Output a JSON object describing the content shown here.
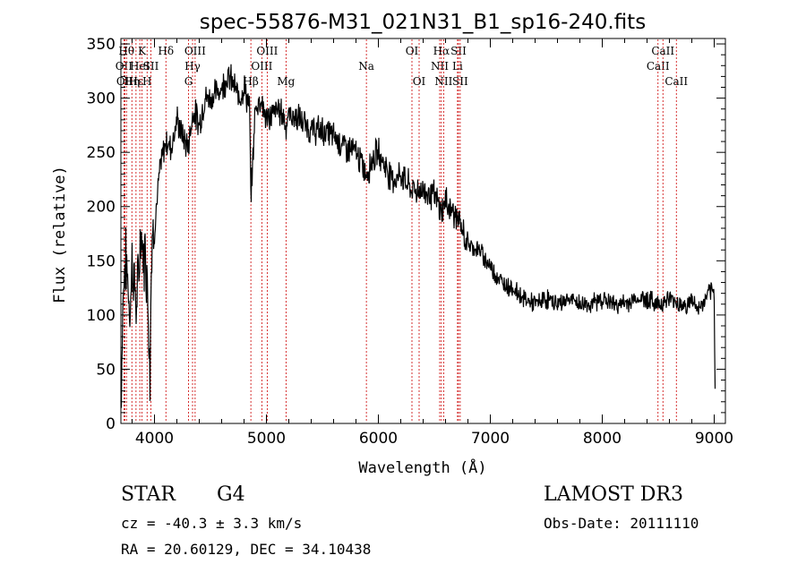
{
  "chart_data": {
    "type": "line",
    "title": "spec-55876-M31_021N31_B1_sp16-240.fits",
    "xlabel": "Wavelength (Å)",
    "ylabel": "Flux (relative)",
    "xlim": [
      3700,
      9100
    ],
    "ylim": [
      0,
      355
    ],
    "xticks": [
      4000,
      5000,
      6000,
      7000,
      8000,
      9000
    ],
    "yticks": [
      0,
      50,
      100,
      150,
      200,
      250,
      300,
      350
    ],
    "series": [
      {
        "name": "spectrum",
        "x": [
          3700,
          3720,
          3740,
          3760,
          3780,
          3800,
          3820,
          3840,
          3860,
          3880,
          3900,
          3920,
          3940,
          3960,
          3968,
          3980,
          4000,
          4050,
          4100,
          4150,
          4200,
          4250,
          4300,
          4350,
          4400,
          4450,
          4500,
          4550,
          4600,
          4650,
          4700,
          4750,
          4800,
          4850,
          4861,
          4900,
          4950,
          5000,
          5050,
          5100,
          5150,
          5175,
          5200,
          5300,
          5400,
          5500,
          5600,
          5700,
          5800,
          5893,
          5950,
          6000,
          6050,
          6100,
          6150,
          6200,
          6300,
          6400,
          6500,
          6563,
          6600,
          6700,
          6800,
          6900,
          7000,
          7100,
          7200,
          7300,
          7400,
          7500,
          7600,
          7700,
          7800,
          7900,
          8000,
          8100,
          8200,
          8300,
          8400,
          8500,
          8600,
          8700,
          8760,
          8800,
          8850,
          8900,
          8950,
          9000,
          9005,
          9010
        ],
        "values": [
          20,
          120,
          150,
          135,
          100,
          150,
          130,
          105,
          140,
          180,
          150,
          160,
          120,
          50,
          130,
          170,
          180,
          235,
          260,
          255,
          280,
          265,
          255,
          290,
          275,
          300,
          300,
          305,
          310,
          320,
          315,
          300,
          310,
          290,
          205,
          290,
          300,
          280,
          285,
          290,
          285,
          275,
          285,
          280,
          270,
          270,
          265,
          255,
          250,
          230,
          245,
          250,
          240,
          230,
          225,
          230,
          215,
          215,
          210,
          195,
          205,
          190,
          165,
          160,
          145,
          130,
          125,
          115,
          110,
          115,
          110,
          115,
          110,
          110,
          115,
          110,
          110,
          115,
          115,
          110,
          115,
          110,
          108,
          115,
          105,
          110,
          120,
          120,
          60,
          20
        ]
      }
    ],
    "line_markers": [
      {
        "wl": 3727,
        "label": "OII",
        "row": 2
      },
      {
        "wl": 3736,
        "label": "OII",
        "row": 3
      },
      {
        "wl": 3750,
        "label": "Hθ",
        "row": 1
      },
      {
        "wl": 3798,
        "label": "Hη",
        "row": 3
      },
      {
        "wl": 3835,
        "label": "Hε",
        "row": 3
      },
      {
        "wl": 3869,
        "label": "HeI",
        "row": 2
      },
      {
        "wl": 3889,
        "label": "K",
        "row": 1
      },
      {
        "wl": 3934,
        "label": "H",
        "row": 3
      },
      {
        "wl": 3968,
        "label": "SII",
        "row": 2
      },
      {
        "wl": 4102,
        "label": "Hδ",
        "row": 1
      },
      {
        "wl": 4304,
        "label": "G",
        "row": 3
      },
      {
        "wl": 4340,
        "label": "Hγ",
        "row": 2
      },
      {
        "wl": 4363,
        "label": "OIII",
        "row": 1
      },
      {
        "wl": 4861,
        "label": "Hβ",
        "row": 3
      },
      {
        "wl": 4959,
        "label": "OIII",
        "row": 2
      },
      {
        "wl": 5007,
        "label": "OIII",
        "row": 1
      },
      {
        "wl": 5175,
        "label": "Mg",
        "row": 3
      },
      {
        "wl": 5893,
        "label": "Na",
        "row": 2
      },
      {
        "wl": 6300,
        "label": "OI",
        "row": 1
      },
      {
        "wl": 6364,
        "label": "OI",
        "row": 3
      },
      {
        "wl": 6548,
        "label": "NII",
        "row": 2
      },
      {
        "wl": 6563,
        "label": "Hα",
        "row": 1
      },
      {
        "wl": 6583,
        "label": "NII",
        "row": 3
      },
      {
        "wl": 6707,
        "label": "Li",
        "row": 2
      },
      {
        "wl": 6716,
        "label": "SII",
        "row": 1
      },
      {
        "wl": 6731,
        "label": "SII",
        "row": 3
      },
      {
        "wl": 8498,
        "label": "CaII",
        "row": 2
      },
      {
        "wl": 8542,
        "label": "CaII",
        "row": 1
      },
      {
        "wl": 8662,
        "label": "CaII",
        "row": 3
      }
    ],
    "colors": {
      "line": "#000000",
      "markers": "#cc0000",
      "axis": "#000000"
    }
  },
  "info": {
    "class": "STAR",
    "subclass": "G4",
    "survey": "LAMOST DR3",
    "cz": "cz = -40.3 ± 3.3 km/s",
    "obs_date": "Obs-Date: 20111110",
    "radec": "RA =  20.60129, DEC =  34.10438"
  }
}
